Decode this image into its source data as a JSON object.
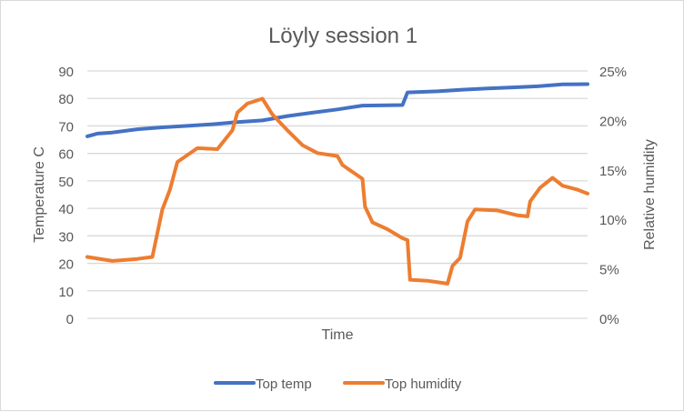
{
  "chart_data": {
    "type": "line",
    "title": "Löyly session 1",
    "xlabel": "Time",
    "ylabel": "Temperature C",
    "y2label": "Relative humidity",
    "ylim": [
      0,
      90
    ],
    "y2lim": [
      0,
      0.25
    ],
    "yticks": [
      "0",
      "10",
      "20",
      "30",
      "40",
      "50",
      "60",
      "70",
      "80",
      "90"
    ],
    "y2ticks": [
      "0%",
      "5%",
      "10%",
      "15%",
      "20%",
      "25%"
    ],
    "grid": true,
    "legend_position": "bottom",
    "series": [
      {
        "name": "Top temp",
        "axis": "left",
        "color": "#4472C4",
        "x": [
          0,
          0.02,
          0.05,
          0.1,
          0.15,
          0.2,
          0.25,
          0.3,
          0.35,
          0.4,
          0.45,
          0.5,
          0.55,
          0.6,
          0.63,
          0.64,
          0.7,
          0.75,
          0.8,
          0.85,
          0.9,
          0.95,
          1.0
        ],
        "values": [
          66.2,
          67.2,
          67.6,
          68.8,
          69.5,
          70.0,
          70.6,
          71.4,
          72.0,
          73.6,
          74.8,
          76.0,
          77.4,
          77.5,
          77.6,
          82.2,
          82.6,
          83.2,
          83.6,
          84.0,
          84.4,
          85.1,
          85.2
        ]
      },
      {
        "name": "Top humidity",
        "axis": "right",
        "color": "#ED7D31",
        "x": [
          0,
          0.05,
          0.1,
          0.13,
          0.15,
          0.165,
          0.18,
          0.2,
          0.22,
          0.26,
          0.29,
          0.3,
          0.32,
          0.35,
          0.37,
          0.4,
          0.43,
          0.46,
          0.5,
          0.51,
          0.53,
          0.55,
          0.555,
          0.57,
          0.6,
          0.63,
          0.64,
          0.645,
          0.68,
          0.72,
          0.73,
          0.745,
          0.76,
          0.775,
          0.82,
          0.86,
          0.88,
          0.885,
          0.905,
          0.93,
          0.95,
          0.98,
          1.0
        ],
        "values": [
          0.062,
          0.058,
          0.06,
          0.062,
          0.11,
          0.13,
          0.158,
          0.165,
          0.172,
          0.171,
          0.19,
          0.208,
          0.217,
          0.222,
          0.206,
          0.19,
          0.175,
          0.167,
          0.164,
          0.155,
          0.148,
          0.141,
          0.113,
          0.097,
          0.09,
          0.081,
          0.079,
          0.039,
          0.038,
          0.035,
          0.053,
          0.061,
          0.098,
          0.11,
          0.109,
          0.104,
          0.103,
          0.118,
          0.132,
          0.142,
          0.134,
          0.13,
          0.126
        ]
      }
    ]
  },
  "legend": [
    {
      "label": "Top temp",
      "color": "#4472C4"
    },
    {
      "label": "Top humidity",
      "color": "#ED7D31"
    }
  ]
}
